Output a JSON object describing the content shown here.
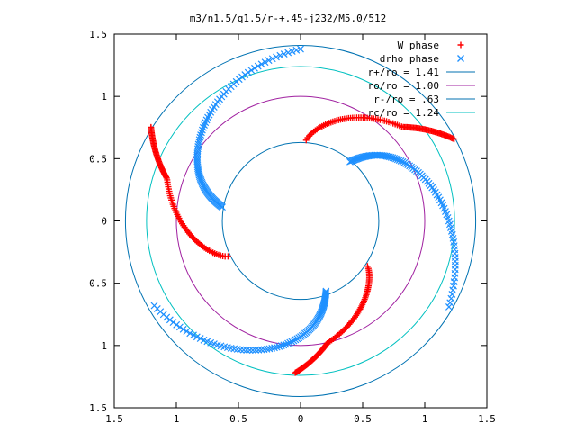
{
  "chart_data": {
    "type": "scatter",
    "title": "m3/n1.5/q1.5/r-+.45-j232/M5.0/512",
    "xlabel": "",
    "ylabel": "",
    "xlim": [
      -1.5,
      1.5
    ],
    "ylim": [
      -1.5,
      1.5
    ],
    "xtick_labels": [
      "1.5",
      "1",
      "0.5",
      "0",
      "0.5",
      "1",
      "1.5"
    ],
    "xtick_values": [
      -1.5,
      -1,
      -0.5,
      0,
      0.5,
      1,
      1.5
    ],
    "ytick_labels": [
      "1.5",
      "1",
      "0.5",
      "0",
      "0.5",
      "1",
      "1.5"
    ],
    "ytick_values": [
      1.5,
      1,
      0.5,
      0,
      -0.5,
      -1,
      -1.5
    ],
    "grid": false,
    "legend_position": "top-right",
    "series": [
      {
        "name": "W phase",
        "marker": "plus",
        "color": "#ff0000",
        "arms": [
          {
            "r0": 0.65,
            "r1": 1.22,
            "theta0": 268,
            "dtheta": 58,
            "plateau": 0.55,
            "knee": 0.75
          },
          {
            "r0": 0.65,
            "r1": 1.4,
            "theta0": 28,
            "dtheta": 58,
            "plateau": 0.55,
            "knee": 0.75
          },
          {
            "r0": 0.65,
            "r1": 1.42,
            "theta0": 148,
            "dtheta": 58,
            "plateau": 0.55,
            "knee": 0.75
          }
        ]
      },
      {
        "name": "drho phase",
        "marker": "cross",
        "color": "#1e90ff",
        "arms": [
          {
            "r0": 0.62,
            "r1": 1.38,
            "theta0": 50,
            "dtheta": 80
          },
          {
            "r0": 0.64,
            "r1": 1.38,
            "theta0": 170,
            "dtheta": 80
          },
          {
            "r0": 0.6,
            "r1": 1.36,
            "theta0": 290,
            "dtheta": 80
          }
        ]
      }
    ],
    "circles": [
      {
        "name": "r+/ro = 1.41",
        "r": 1.41,
        "color": "#0072b2"
      },
      {
        "name": "ro/ro = 1.00",
        "r": 1.0,
        "color": "#a020a0"
      },
      {
        "name": "r-/ro = .63",
        "r": 0.63,
        "color": "#0072b2"
      },
      {
        "name": "rc/ro = 1.24",
        "r": 1.24,
        "color": "#00c0c0"
      }
    ]
  }
}
